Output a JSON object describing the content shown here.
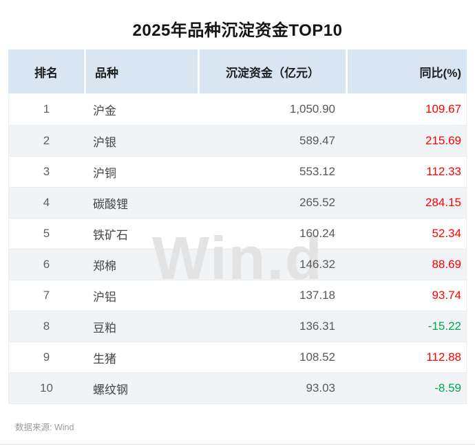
{
  "title": "2025年品种沉淀资金TOP10",
  "watermark": "Win.d",
  "source": "数据来源: Wind",
  "colors": {
    "positive": "#fe0000",
    "negative": "#00a846",
    "header_bg": "#d9e6f1",
    "stripe_bg": "#f0f4f7"
  },
  "table": {
    "columns": [
      "排名",
      "品种",
      "沉淀资金（亿元）",
      "同比(%)"
    ],
    "rows": [
      {
        "rank": "1",
        "name": "沪金",
        "funds": "1,050.90",
        "yoy": "109.67",
        "trend": "positive"
      },
      {
        "rank": "2",
        "name": "沪银",
        "funds": "589.47",
        "yoy": "215.69",
        "trend": "positive"
      },
      {
        "rank": "3",
        "name": "沪铜",
        "funds": "553.12",
        "yoy": "112.33",
        "trend": "positive"
      },
      {
        "rank": "4",
        "name": "碳酸锂",
        "funds": "265.52",
        "yoy": "284.15",
        "trend": "positive"
      },
      {
        "rank": "5",
        "name": "铁矿石",
        "funds": "160.24",
        "yoy": "52.34",
        "trend": "positive"
      },
      {
        "rank": "6",
        "name": "郑棉",
        "funds": "146.32",
        "yoy": "88.69",
        "trend": "positive"
      },
      {
        "rank": "7",
        "name": "沪铝",
        "funds": "137.18",
        "yoy": "93.74",
        "trend": "positive"
      },
      {
        "rank": "8",
        "name": "豆粕",
        "funds": "136.31",
        "yoy": "-15.22",
        "trend": "negative"
      },
      {
        "rank": "9",
        "name": "生猪",
        "funds": "108.52",
        "yoy": "112.88",
        "trend": "positive"
      },
      {
        "rank": "10",
        "name": "螺纹钢",
        "funds": "93.03",
        "yoy": "-8.59",
        "trend": "negative"
      }
    ]
  },
  "chart_data": {
    "type": "table",
    "title": "2025年品种沉淀资金TOP10",
    "columns": [
      "排名",
      "品种",
      "沉淀资金（亿元）",
      "同比(%)"
    ],
    "rows": [
      [
        1,
        "沪金",
        1050.9,
        109.67
      ],
      [
        2,
        "沪银",
        589.47,
        215.69
      ],
      [
        3,
        "沪铜",
        553.12,
        112.33
      ],
      [
        4,
        "碳酸锂",
        265.52,
        284.15
      ],
      [
        5,
        "铁矿石",
        160.24,
        52.34
      ],
      [
        6,
        "郑棉",
        146.32,
        88.69
      ],
      [
        7,
        "沪铝",
        137.18,
        93.74
      ],
      [
        8,
        "豆粕",
        136.31,
        -15.22
      ],
      [
        9,
        "生猪",
        108.52,
        112.88
      ],
      [
        10,
        "螺纹钢",
        93.03,
        -8.59
      ]
    ],
    "notes": "同比(%) 为正显示红色，为负显示绿色；数据来源 Wind"
  }
}
